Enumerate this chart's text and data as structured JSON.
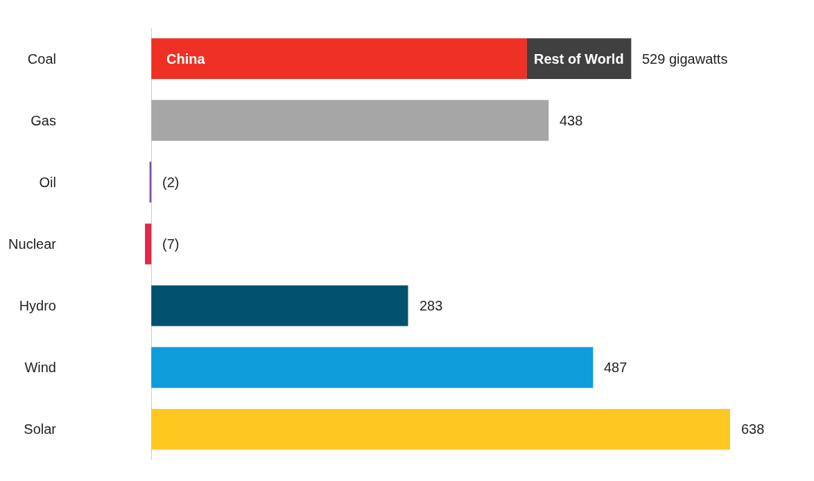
{
  "chart_data": {
    "type": "bar",
    "orientation": "horizontal",
    "stacked": true,
    "categories": [
      "Coal",
      "Gas",
      "Oil",
      "Nuclear",
      "Hydro",
      "Wind",
      "Solar"
    ],
    "series": [
      {
        "name": "China",
        "colors": [
          "#ee3124",
          "#a6a6a6",
          "#7f4fa0",
          "#e0284a",
          "#00526e",
          "#109ddb",
          "#fec820"
        ],
        "values": [
          414,
          438,
          -2,
          -7,
          283,
          487,
          638
        ],
        "value_labels": [
          null,
          "438",
          "(2)",
          "(7)",
          "283",
          "487",
          "638"
        ]
      },
      {
        "name": "Rest of World",
        "color": "#404040",
        "values": [
          115,
          null,
          null,
          null,
          null,
          null,
          null
        ]
      }
    ],
    "totals": [
      "529 gigawatts",
      null,
      null,
      null,
      null,
      null,
      null
    ],
    "tick_labels": "y",
    "legend": false
  }
}
